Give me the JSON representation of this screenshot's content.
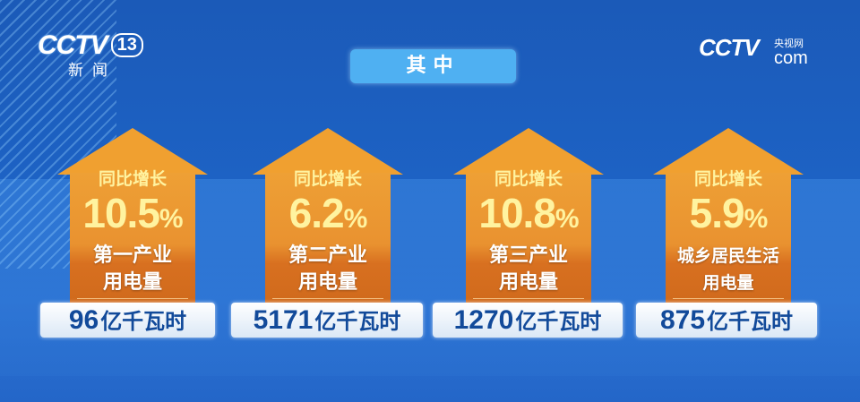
{
  "logo_left": {
    "brand": "CCTV",
    "channel": "13",
    "sub": "新闻"
  },
  "logo_right": {
    "brand": "CCTV",
    "domain": "com",
    "name": "央视网"
  },
  "title": "其中",
  "items": [
    {
      "label": "同比增长",
      "percent": "10.5",
      "percent_sign": "%",
      "name": "第一产业用电量",
      "value": "96",
      "unit": "亿千瓦时"
    },
    {
      "label": "同比增长",
      "percent": "6.2",
      "percent_sign": "%",
      "name": "第二产业用电量",
      "value": "5171",
      "unit": "亿千瓦时"
    },
    {
      "label": "同比增长",
      "percent": "10.8",
      "percent_sign": "%",
      "name": "第三产业用电量",
      "value": "1270",
      "unit": "亿千瓦时"
    },
    {
      "label": "同比增长",
      "percent": "5.9",
      "percent_sign": "%",
      "name": "城乡居民生活用电量",
      "value": "875",
      "unit": "亿千瓦时"
    }
  ],
  "colors": {
    "house": "#f0a030",
    "percent_text": "#fff3a0",
    "value_text": "#124a9a",
    "title_bg": "#4fb0f2"
  }
}
